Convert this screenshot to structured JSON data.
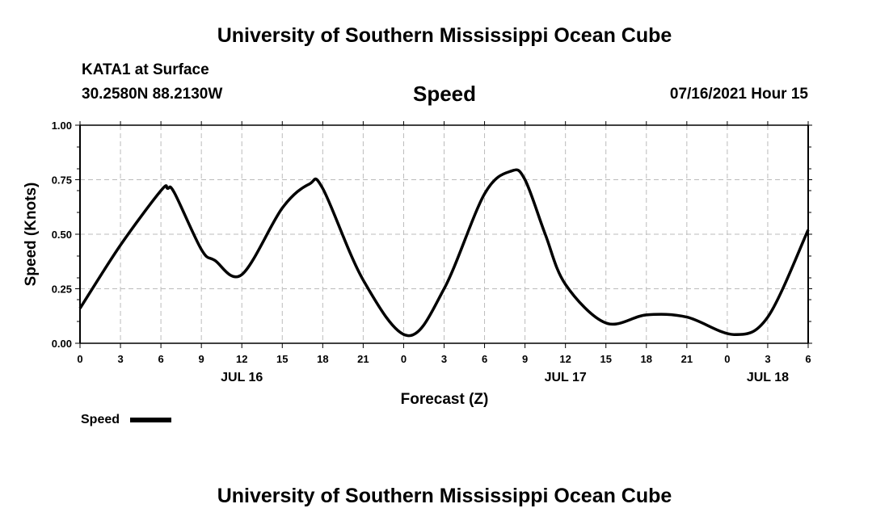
{
  "header": {
    "title": "University of Southern Mississippi Ocean Cube",
    "station": "KATA1 at Surface",
    "coords": "30.2580N  88.2130W",
    "plot_title": "Speed",
    "datetime": "07/16/2021 Hour 15"
  },
  "footer": {
    "title": "University of Southern Mississippi Ocean Cube"
  },
  "chart_data": {
    "type": "line",
    "title": "Speed",
    "xlabel": "Forecast (Z)",
    "ylabel": "Speed (Knots)",
    "xlim": [
      0,
      54
    ],
    "ylim": [
      0,
      1
    ],
    "grid": true,
    "x_ticks": [
      0,
      3,
      6,
      9,
      12,
      15,
      18,
      21,
      24,
      27,
      30,
      33,
      36,
      39,
      42,
      45,
      48,
      51,
      54
    ],
    "x_tick_labels": [
      "0",
      "3",
      "6",
      "9",
      "12",
      "15",
      "18",
      "21",
      "0",
      "3",
      "6",
      "9",
      "12",
      "15",
      "18",
      "21",
      "0",
      "3",
      "6"
    ],
    "date_labels": [
      {
        "hour": 12,
        "label": "JUL 16"
      },
      {
        "hour": 36,
        "label": "JUL 17"
      },
      {
        "hour": 51,
        "label": "JUL 18"
      }
    ],
    "y_ticks": [
      0,
      0.25,
      0.5,
      0.75,
      1
    ],
    "y_tick_labels": [
      "0.00",
      "0.25",
      "0.50",
      "0.75",
      "1.00"
    ],
    "legend": {
      "label": "Speed",
      "placement": "bottom-left"
    },
    "series": [
      {
        "name": "Speed",
        "color": "#000000",
        "x": [
          0,
          3,
          6,
          6.5,
          7,
          9,
          10,
          12,
          15,
          17,
          18,
          21,
          24.3,
          27,
          30,
          32,
          33,
          34.5,
          36,
          39,
          42,
          45,
          48.5,
          51,
          54
        ],
        "values": [
          0.16,
          0.45,
          0.7,
          0.71,
          0.69,
          0.43,
          0.38,
          0.315,
          0.62,
          0.73,
          0.71,
          0.29,
          0.035,
          0.25,
          0.685,
          0.79,
          0.75,
          0.5,
          0.27,
          0.093,
          0.13,
          0.12,
          0.04,
          0.12,
          0.52
        ]
      }
    ]
  }
}
